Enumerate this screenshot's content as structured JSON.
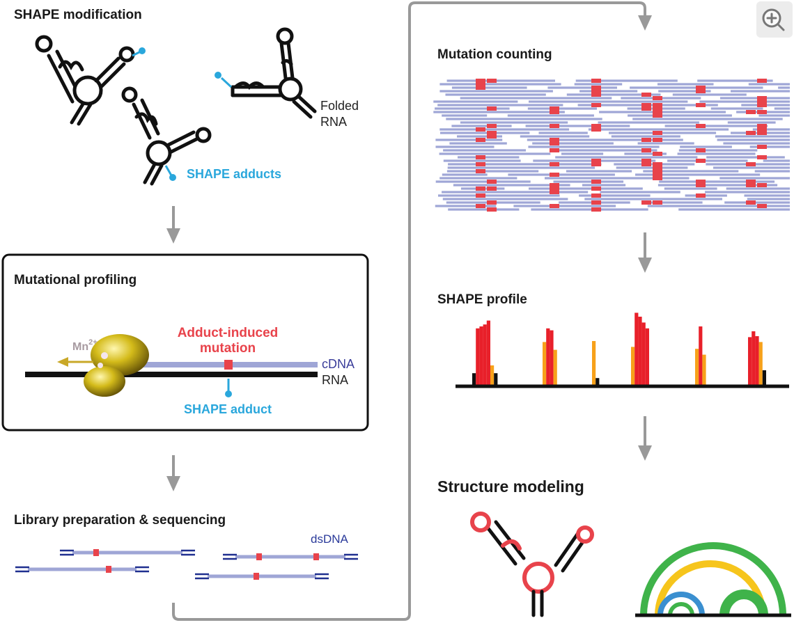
{
  "steps": {
    "shape_modification": "SHAPE modification",
    "mutational_profiling": "Mutational profiling",
    "library_prep": "Library preparation & sequencing",
    "mutation_counting": "Mutation counting",
    "shape_profile": "SHAPE profile",
    "structure_modeling": "Structure modeling"
  },
  "labels": {
    "folded_rna_1": "Folded",
    "folded_rna_2": "RNA",
    "shape_adducts": "SHAPE adducts",
    "mn_base": "Mn",
    "mn_sup": "2+",
    "adduct_induced_1": "Adduct-induced",
    "adduct_induced_2": "mutation",
    "cdna": "cDNA",
    "rna": "RNA",
    "shape_adduct": "SHAPE adduct",
    "dsdna": "dsDNA"
  },
  "colors": {
    "adduct": "#2aa7dc",
    "mutation": "#e8434b",
    "read": "#9fa6d6",
    "dsdna": "#1f2f8f",
    "flow_arrow": "#888888",
    "polymerase": "#d4bb1a",
    "arc_green": "#3fb34a",
    "arc_yellow": "#f6c51c",
    "arc_blue": "#3a8fd0",
    "profile_red": "#e8202a",
    "profile_orange": "#f7a11a"
  },
  "icons": {
    "zoom": "zoom-in-icon"
  },
  "chart_data": {
    "type": "bar",
    "title": "SHAPE profile",
    "note": "Relative reactivity by nucleotide; color classes: black = low, orange = medium, red = high",
    "groups": [
      {
        "reactivity": [
          0.12,
          0.58,
          0.6,
          0.62,
          0.66,
          0.2,
          0.12
        ],
        "classes": [
          "low",
          "high",
          "high",
          "high",
          "high",
          "medium",
          "low"
        ]
      },
      {
        "reactivity": [
          0.44,
          0.58,
          0.56,
          0.36
        ],
        "classes": [
          "medium",
          "high",
          "high",
          "medium"
        ]
      },
      {
        "reactivity": [
          0.45,
          0.07
        ],
        "classes": [
          "medium",
          "low"
        ]
      },
      {
        "reactivity": [
          0.39,
          0.74,
          0.7,
          0.64,
          0.58
        ],
        "classes": [
          "medium",
          "high",
          "high",
          "high",
          "high"
        ]
      },
      {
        "reactivity": [
          0.37,
          0.6,
          0.31
        ],
        "classes": [
          "medium",
          "high",
          "medium"
        ]
      },
      {
        "reactivity": [
          0.49,
          0.55,
          0.5,
          0.44,
          0.15
        ],
        "classes": [
          "high",
          "high",
          "high",
          "medium",
          "low"
        ]
      }
    ]
  }
}
